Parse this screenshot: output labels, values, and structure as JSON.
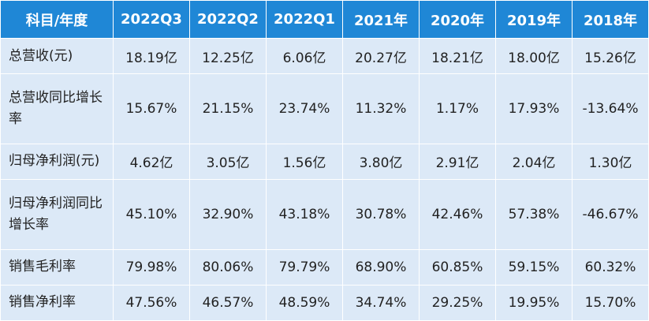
{
  "table": {
    "header": [
      "科目/年度",
      "2022Q3",
      "2022Q2",
      "2022Q1",
      "2021年",
      "2020年",
      "2019年",
      "2018年"
    ],
    "rows": [
      [
        "总营收(元)",
        "18.19亿",
        "12.25亿",
        "6.06亿",
        "20.27亿",
        "18.21亿",
        "18.00亿",
        "15.26亿"
      ],
      [
        "总营收同比增长率",
        "15.67%",
        "21.15%",
        "23.74%",
        "11.32%",
        "1.17%",
        "17.93%",
        "-13.64%"
      ],
      [
        "归母净利润(元)",
        "4.62亿",
        "3.05亿",
        "1.56亿",
        "3.80亿",
        "2.91亿",
        "2.04亿",
        "1.30亿"
      ],
      [
        "归母净利润同比增长率",
        "45.10%",
        "32.90%",
        "43.18%",
        "30.78%",
        "42.46%",
        "57.38%",
        "-46.67%"
      ],
      [
        "销售毛利率",
        "79.98%",
        "80.06%",
        "79.79%",
        "68.90%",
        "60.85%",
        "59.15%",
        "60.32%"
      ],
      [
        "销售净利率",
        "47.56%",
        "46.57%",
        "48.59%",
        "34.74%",
        "29.25%",
        "19.95%",
        "15.70%"
      ]
    ]
  }
}
